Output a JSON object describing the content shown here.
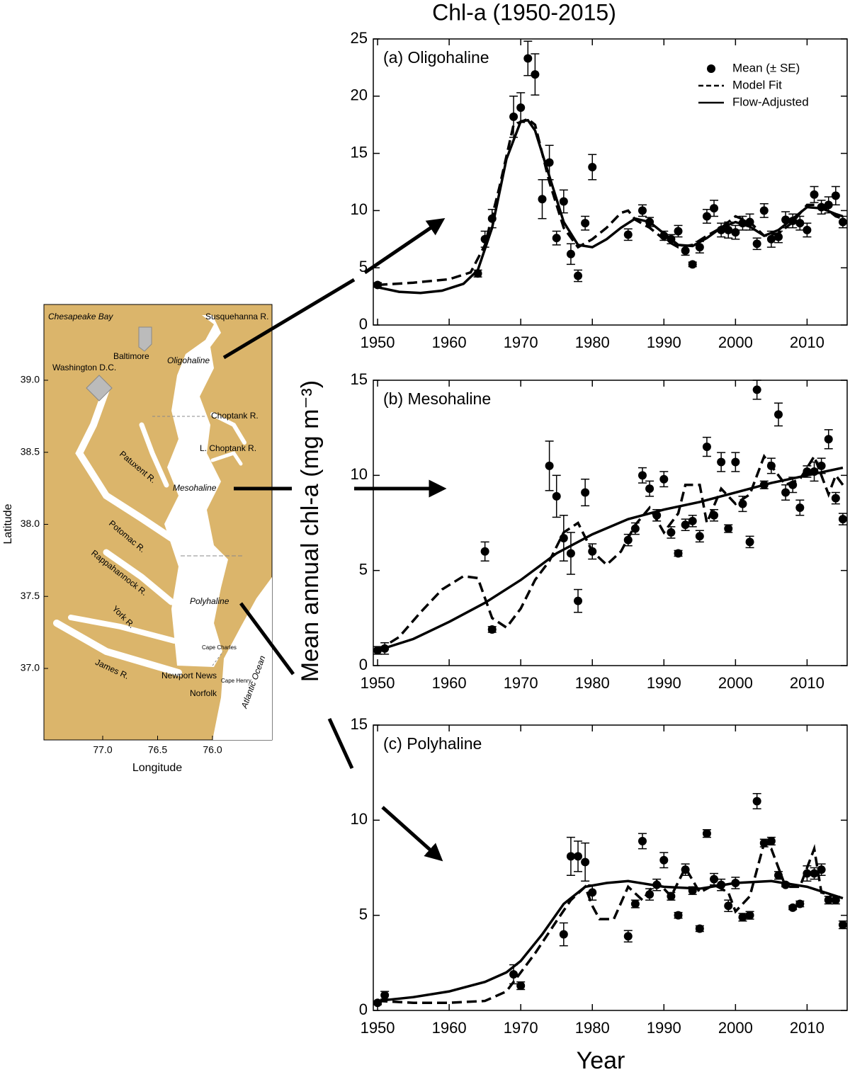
{
  "figure": {
    "title": "Chl-a (1950-2015)",
    "ylabel": "Mean annual chl-a (mg m⁻³)",
    "xlabel": "Year"
  },
  "map": {
    "xlabel": "Longitude",
    "ylabel": "Latitude",
    "xticks": [
      {
        "value": 77,
        "label": "77.0"
      },
      {
        "value": 76.5,
        "label": "76.5"
      },
      {
        "value": 76,
        "label": "76.0"
      }
    ],
    "yticks": [
      {
        "value": 39,
        "label": "39.0"
      },
      {
        "value": 38.5,
        "label": "38.5"
      },
      {
        "value": 38,
        "label": "38.0"
      },
      {
        "value": 37.5,
        "label": "37.5"
      },
      {
        "value": 37,
        "label": "37.0"
      }
    ],
    "labels": [
      "Chesapeake Bay",
      "Susquehanna R.",
      "Baltimore",
      "Washington D.C.",
      "Oligohaline",
      "Choptank R.",
      "L. Choptank R.",
      "Patuxent R.",
      "Mesohaline",
      "Potomac R.",
      "Rappahannock R.",
      "Polyhaline",
      "York R.",
      "James R.",
      "Cape Charles",
      "Newport News",
      "Cape Henry",
      "Norfolk",
      "Atlantic Ocean"
    ]
  },
  "chart_data": [
    {
      "type": "scatter",
      "title": "(a) Oligohaline",
      "xlim": [
        1949.4,
        2015.6
      ],
      "ylim": [
        0,
        25
      ],
      "xticks": [
        1950,
        1960,
        1970,
        1980,
        1990,
        2000,
        2010
      ],
      "yticks": [
        0,
        5,
        10,
        15,
        20,
        25
      ],
      "legend": "upper right",
      "series": [
        {
          "name": "Mean (± SE)",
          "type": "scatter",
          "color": "#000000",
          "x": [
            1950,
            1964,
            1965,
            1966,
            1969,
            1970,
            1971,
            1972,
            1973,
            1974,
            1975,
            1976,
            1977,
            1978,
            1979,
            1980,
            1985,
            1987,
            1988,
            1990,
            1991,
            1992,
            1993,
            1994,
            1995,
            1996,
            1997,
            1998,
            1999,
            2000,
            2001,
            2002,
            2003,
            2004,
            2005,
            2006,
            2007,
            2008,
            2009,
            2010,
            2011,
            2012,
            2013,
            2014,
            2015
          ],
          "values": [
            3.5,
            4.5,
            7.5,
            9.3,
            18.2,
            19.0,
            23.3,
            21.9,
            11.0,
            14.2,
            7.6,
            10.8,
            6.2,
            4.3,
            8.9,
            13.8,
            7.9,
            10.0,
            9.0,
            7.8,
            7.5,
            8.2,
            6.5,
            5.3,
            6.8,
            9.5,
            10.2,
            8.3,
            8.3,
            8.1,
            8.9,
            9.0,
            7.1,
            10.0,
            7.5,
            7.7,
            9.2,
            9.1,
            8.9,
            8.3,
            11.4,
            10.3,
            10.5,
            11.3,
            9.0
          ],
          "errors": [
            0.2,
            0.3,
            0.7,
            0.8,
            1.8,
            1.3,
            1.5,
            1.8,
            1.7,
            1.5,
            0.6,
            1.0,
            0.9,
            0.5,
            0.6,
            1.1,
            0.5,
            0.5,
            0.4,
            0.4,
            0.4,
            0.5,
            0.4,
            0.2,
            0.5,
            0.6,
            0.7,
            0.6,
            0.7,
            0.6,
            0.6,
            0.7,
            0.5,
            0.6,
            0.7,
            0.5,
            0.7,
            0.6,
            0.6,
            0.6,
            0.7,
            0.6,
            0.7,
            0.8,
            0.5
          ]
        },
        {
          "name": "Model Fit",
          "type": "line",
          "style": "dashed",
          "color": "#000000",
          "x": [
            1950,
            1955,
            1960,
            1963,
            1965,
            1967,
            1969,
            1971,
            1972,
            1974,
            1976,
            1978,
            1980,
            1982,
            1984,
            1985,
            1986,
            1988,
            1990,
            1992,
            1994,
            1996,
            1998,
            2000,
            2002,
            2004,
            2006,
            2008,
            2010,
            2012,
            2014,
            2015
          ],
          "values": [
            3.5,
            3.7,
            4.0,
            4.6,
            7.0,
            12.0,
            17.5,
            18.0,
            17.5,
            12.5,
            8.5,
            6.8,
            7.5,
            8.5,
            9.8,
            10.0,
            9.2,
            8.5,
            7.5,
            6.8,
            7.0,
            7.8,
            8.5,
            9.5,
            9.0,
            7.8,
            8.0,
            9.0,
            10.5,
            10.5,
            9.5,
            9.3
          ]
        },
        {
          "name": "Flow-Adjusted",
          "type": "line",
          "style": "solid",
          "color": "#000000",
          "x": [
            1950,
            1953,
            1956,
            1959,
            1962,
            1964,
            1966,
            1968,
            1970,
            1971,
            1972,
            1974,
            1976,
            1978,
            1980,
            1982,
            1984,
            1986,
            1988,
            1990,
            1992,
            1994,
            1996,
            1998,
            2000,
            2002,
            2004,
            2006,
            2008,
            2010,
            2012,
            2014,
            2015
          ],
          "values": [
            3.3,
            2.9,
            2.8,
            3.0,
            3.6,
            4.8,
            8.5,
            14.5,
            17.8,
            17.9,
            17.0,
            13.0,
            9.0,
            7.0,
            6.8,
            7.5,
            8.5,
            9.3,
            9.0,
            8.0,
            7.0,
            6.9,
            7.6,
            8.5,
            9.0,
            8.6,
            7.8,
            8.3,
            9.3,
            10.3,
            10.2,
            9.7,
            9.5
          ]
        }
      ]
    },
    {
      "type": "scatter",
      "title": "(b) Mesohaline",
      "xlim": [
        1949.4,
        2015.6
      ],
      "ylim": [
        0,
        15
      ],
      "xticks": [
        1950,
        1960,
        1970,
        1980,
        1990,
        2000,
        2010
      ],
      "yticks": [
        0,
        5,
        10,
        15
      ],
      "series": [
        {
          "type": "scatter",
          "color": "#000000",
          "x": [
            1950,
            1951,
            1965,
            1966,
            1974,
            1975,
            1976,
            1977,
            1978,
            1979,
            1980,
            1985,
            1986,
            1987,
            1988,
            1989,
            1990,
            1991,
            1992,
            1993,
            1994,
            1995,
            1996,
            1997,
            1998,
            1999,
            2000,
            2001,
            2002,
            2003,
            2004,
            2005,
            2006,
            2007,
            2008,
            2009,
            2010,
            2011,
            2012,
            2013,
            2014,
            2015
          ],
          "values": [
            0.8,
            0.9,
            6.0,
            1.9,
            10.5,
            8.9,
            6.7,
            5.9,
            3.4,
            9.1,
            6.0,
            6.6,
            7.2,
            10.0,
            9.3,
            7.9,
            9.8,
            7.0,
            5.9,
            7.4,
            7.6,
            6.8,
            11.5,
            7.9,
            10.7,
            7.2,
            10.7,
            8.5,
            6.5,
            14.5,
            9.5,
            10.5,
            13.2,
            9.1,
            9.5,
            8.3,
            10.2,
            10.2,
            10.5,
            11.9,
            8.8,
            7.7
          ],
          "errors": [
            0.2,
            0.3,
            0.5,
            0.15,
            1.3,
            1.1,
            1.2,
            1.1,
            0.6,
            0.7,
            0.4,
            0.3,
            0.3,
            0.4,
            0.4,
            0.3,
            0.4,
            0.3,
            0.15,
            0.3,
            0.3,
            0.3,
            0.5,
            0.3,
            0.5,
            0.2,
            0.5,
            0.4,
            0.3,
            0.5,
            0.2,
            0.4,
            0.6,
            0.4,
            0.4,
            0.4,
            0.3,
            0.5,
            0.4,
            0.5,
            0.3,
            0.3
          ]
        },
        {
          "type": "line",
          "style": "dashed",
          "color": "#000000",
          "x": [
            1950,
            1953,
            1956,
            1959,
            1962,
            1964,
            1966,
            1968,
            1970,
            1972,
            1974,
            1976,
            1978,
            1980,
            1982,
            1984,
            1986,
            1988,
            1990,
            1992,
            1993,
            1995,
            1996,
            1998,
            2000,
            2002,
            2004,
            2005,
            2007,
            2009,
            2011,
            2012,
            2013,
            2014,
            2015
          ],
          "values": [
            0.8,
            1.5,
            2.8,
            4.0,
            4.7,
            4.6,
            2.5,
            2.0,
            3.0,
            4.5,
            5.5,
            7.0,
            7.5,
            6.0,
            5.3,
            6.0,
            7.4,
            8.3,
            7.0,
            8.0,
            9.5,
            9.5,
            7.5,
            9.3,
            8.5,
            9.0,
            11.0,
            10.5,
            9.5,
            9.8,
            11.0,
            10.0,
            9.0,
            10.0,
            9.5
          ]
        },
        {
          "type": "line",
          "style": "solid",
          "color": "#000000",
          "x": [
            1950,
            1955,
            1960,
            1965,
            1970,
            1975,
            1980,
            1985,
            1990,
            1995,
            2000,
            2005,
            2010,
            2015
          ],
          "values": [
            0.8,
            1.4,
            2.3,
            3.3,
            4.5,
            5.9,
            6.9,
            7.7,
            8.2,
            8.6,
            9.1,
            9.6,
            10.0,
            10.4
          ]
        }
      ]
    },
    {
      "type": "scatter",
      "title": "(c) Polyhaline",
      "xlim": [
        1949.4,
        2015.6
      ],
      "ylim": [
        0,
        15
      ],
      "xticks": [
        1950,
        1960,
        1970,
        1980,
        1990,
        2000,
        2010
      ],
      "yticks": [
        0,
        5,
        10,
        15
      ],
      "series": [
        {
          "type": "scatter",
          "color": "#000000",
          "x": [
            1950,
            1951,
            1969,
            1970,
            1976,
            1977,
            1978,
            1979,
            1980,
            1985,
            1986,
            1987,
            1988,
            1989,
            1990,
            1991,
            1992,
            1993,
            1994,
            1995,
            1996,
            1997,
            1998,
            1999,
            2000,
            2001,
            2002,
            2003,
            2004,
            2005,
            2006,
            2007,
            2008,
            2009,
            2010,
            2011,
            2012,
            2013,
            2014,
            2015
          ],
          "values": [
            0.4,
            0.8,
            1.9,
            1.3,
            4.0,
            8.1,
            8.1,
            7.8,
            6.2,
            3.9,
            5.6,
            8.9,
            6.1,
            6.6,
            7.9,
            6.0,
            5.0,
            7.4,
            6.3,
            4.3,
            9.3,
            6.9,
            6.6,
            5.5,
            6.7,
            4.9,
            5.0,
            11.0,
            8.8,
            8.9,
            7.1,
            6.6,
            5.4,
            5.6,
            7.2,
            7.2,
            7.4,
            5.8,
            5.8,
            4.5
          ],
          "errors": [
            0.1,
            0.2,
            0.5,
            0.2,
            0.6,
            1.0,
            0.8,
            1.0,
            0.4,
            0.3,
            0.2,
            0.4,
            0.3,
            0.3,
            0.4,
            0.2,
            0.15,
            0.3,
            0.2,
            0.15,
            0.2,
            0.3,
            0.3,
            0.3,
            0.3,
            0.2,
            0.2,
            0.4,
            0.2,
            0.2,
            0.2,
            0.1,
            0.1,
            0.15,
            0.4,
            0.3,
            0.3,
            0.2,
            0.2,
            0.2
          ]
        },
        {
          "type": "line",
          "style": "dashed",
          "color": "#000000",
          "x": [
            1950,
            1955,
            1960,
            1965,
            1968,
            1970,
            1972,
            1975,
            1977,
            1979,
            1980,
            1981,
            1983,
            1985,
            1987,
            1989,
            1991,
            1993,
            1995,
            1997,
            1999,
            2000,
            2002,
            2004,
            2005,
            2007,
            2009,
            2011,
            2012,
            2015
          ],
          "values": [
            0.5,
            0.4,
            0.4,
            0.5,
            1.0,
            2.0,
            3.0,
            4.7,
            5.8,
            6.5,
            5.5,
            4.8,
            4.8,
            6.5,
            5.8,
            6.8,
            6.0,
            7.5,
            6.2,
            6.6,
            6.2,
            5.2,
            6.0,
            8.8,
            8.5,
            6.5,
            6.5,
            8.5,
            6.2,
            5.9
          ]
        },
        {
          "type": "line",
          "style": "solid",
          "color": "#000000",
          "x": [
            1950,
            1955,
            1960,
            1965,
            1968,
            1970,
            1973,
            1976,
            1979,
            1982,
            1985,
            1990,
            1995,
            2000,
            2005,
            2010,
            2015
          ],
          "values": [
            0.5,
            0.7,
            1.0,
            1.5,
            2.0,
            2.6,
            4.0,
            5.6,
            6.5,
            6.7,
            6.8,
            6.5,
            6.4,
            6.7,
            6.8,
            6.5,
            5.9
          ]
        }
      ]
    }
  ]
}
